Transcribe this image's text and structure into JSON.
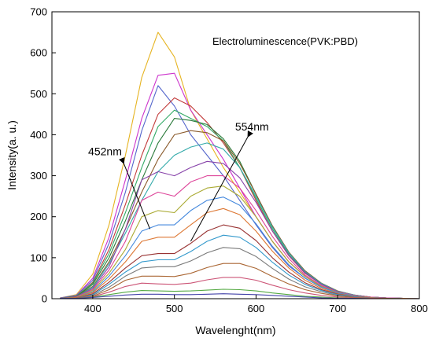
{
  "chart_data": {
    "type": "line",
    "title": "Electroluminescence(PVK:PBD)",
    "xlabel": "Wavelenght(nm)",
    "ylabel": "Intensity(a. u.)",
    "xlim": [
      350,
      800
    ],
    "ylim": [
      0,
      700
    ],
    "x_ticks": [
      400,
      500,
      600,
      700,
      800
    ],
    "y_ticks": [
      0,
      100,
      200,
      300,
      400,
      500,
      600,
      700
    ],
    "grid": false,
    "annotations": [
      {
        "text": "452nm",
        "x": 415,
        "y": 350,
        "arrow_from": [
          438,
          330
        ],
        "arrow_to": [
          470,
          170
        ]
      },
      {
        "text": "554nm",
        "x": 595,
        "y": 410,
        "arrow_from": [
          590,
          395
        ],
        "arrow_to": [
          520,
          140
        ]
      }
    ],
    "x": [
      360,
      380,
      400,
      420,
      440,
      460,
      480,
      500,
      520,
      540,
      560,
      580,
      600,
      620,
      640,
      660,
      680,
      700,
      720,
      740,
      760,
      780,
      800
    ],
    "series": [
      {
        "color": "#e6b422",
        "values": [
          2,
          10,
          60,
          180,
          350,
          540,
          650,
          590,
          460,
          390,
          320,
          260,
          200,
          140,
          90,
          55,
          30,
          15,
          8,
          4,
          2,
          1,
          0
        ]
      },
      {
        "color": "#cc33cc",
        "values": [
          2,
          8,
          50,
          150,
          290,
          440,
          545,
          550,
          460,
          400,
          340,
          270,
          200,
          140,
          90,
          55,
          30,
          15,
          8,
          4,
          2,
          1,
          0
        ]
      },
      {
        "color": "#5566cc",
        "values": [
          2,
          8,
          45,
          135,
          260,
          410,
          520,
          470,
          400,
          350,
          300,
          240,
          180,
          125,
          80,
          50,
          28,
          14,
          7,
          3,
          1,
          1,
          0
        ]
      },
      {
        "color": "#c23b3b",
        "values": [
          1,
          6,
          40,
          120,
          230,
          350,
          450,
          490,
          470,
          430,
          380,
          320,
          240,
          165,
          105,
          62,
          35,
          17,
          8,
          4,
          2,
          1,
          0
        ]
      },
      {
        "color": "#33aa66",
        "values": [
          1,
          6,
          38,
          110,
          210,
          320,
          420,
          460,
          440,
          420,
          385,
          320,
          245,
          170,
          108,
          64,
          36,
          18,
          9,
          4,
          2,
          1,
          0
        ]
      },
      {
        "color": "#2a7a3a",
        "values": [
          1,
          5,
          35,
          100,
          190,
          290,
          380,
          440,
          435,
          425,
          390,
          335,
          255,
          175,
          112,
          66,
          37,
          18,
          9,
          4,
          2,
          1,
          0
        ]
      },
      {
        "color": "#8a5a2a",
        "values": [
          1,
          5,
          30,
          90,
          170,
          260,
          340,
          400,
          410,
          405,
          385,
          330,
          255,
          178,
          114,
          68,
          38,
          19,
          9,
          4,
          2,
          1,
          0
        ]
      },
      {
        "color": "#33aaaa",
        "values": [
          1,
          4,
          28,
          85,
          160,
          240,
          310,
          350,
          370,
          380,
          365,
          320,
          250,
          175,
          112,
          66,
          37,
          18,
          9,
          4,
          2,
          1,
          0
        ]
      },
      {
        "color": "#8844aa",
        "values": [
          1,
          4,
          25,
          78,
          170,
          290,
          310,
          300,
          320,
          335,
          330,
          295,
          235,
          165,
          106,
          63,
          35,
          17,
          8,
          4,
          2,
          1,
          0
        ]
      },
      {
        "color": "#dd4499",
        "values": [
          1,
          4,
          22,
          70,
          140,
          240,
          260,
          250,
          285,
          300,
          300,
          270,
          215,
          152,
          98,
          58,
          32,
          16,
          8,
          4,
          2,
          1,
          0
        ]
      },
      {
        "color": "#aaaa33",
        "values": [
          1,
          3,
          20,
          62,
          120,
          200,
          215,
          210,
          250,
          270,
          275,
          250,
          200,
          140,
          90,
          54,
          30,
          15,
          7,
          3,
          1,
          1,
          0
        ]
      },
      {
        "color": "#4488dd",
        "values": [
          1,
          3,
          17,
          55,
          105,
          165,
          180,
          180,
          215,
          240,
          248,
          228,
          183,
          128,
          83,
          50,
          28,
          14,
          7,
          3,
          1,
          1,
          0
        ]
      },
      {
        "color": "#dd7733",
        "values": [
          1,
          3,
          15,
          48,
          90,
          140,
          150,
          150,
          180,
          210,
          220,
          205,
          165,
          116,
          75,
          45,
          25,
          12,
          6,
          3,
          1,
          1,
          0
        ]
      },
      {
        "color": "#993333",
        "values": [
          1,
          2,
          12,
          40,
          75,
          105,
          110,
          110,
          135,
          165,
          180,
          172,
          142,
          100,
          65,
          39,
          22,
          11,
          5,
          2,
          1,
          0,
          0
        ]
      },
      {
        "color": "#3399cc",
        "values": [
          1,
          2,
          10,
          35,
          65,
          90,
          95,
          95,
          115,
          140,
          155,
          150,
          125,
          89,
          58,
          35,
          20,
          10,
          5,
          2,
          1,
          0,
          0
        ]
      },
      {
        "color": "#7a7a7a",
        "values": [
          1,
          2,
          8,
          28,
          55,
          75,
          78,
          78,
          92,
          112,
          125,
          122,
          103,
          74,
          48,
          29,
          17,
          8,
          4,
          2,
          1,
          0,
          0
        ]
      },
      {
        "color": "#aa6633",
        "values": [
          1,
          2,
          6,
          22,
          45,
          55,
          55,
          54,
          62,
          76,
          86,
          86,
          74,
          54,
          36,
          22,
          13,
          7,
          3,
          1,
          1,
          0,
          0
        ]
      },
      {
        "color": "#cc5577",
        "values": [
          1,
          1,
          5,
          16,
          30,
          38,
          36,
          35,
          38,
          46,
          52,
          52,
          45,
          33,
          22,
          14,
          8,
          4,
          2,
          1,
          0,
          0,
          0
        ]
      },
      {
        "color": "#55aa44",
        "values": [
          1,
          1,
          4,
          10,
          16,
          20,
          19,
          18,
          19,
          21,
          23,
          22,
          19,
          14,
          10,
          6,
          4,
          2,
          1,
          0,
          0,
          0,
          0
        ]
      },
      {
        "color": "#4444aa",
        "values": [
          1,
          1,
          3,
          6,
          9,
          11,
          11,
          10,
          10,
          11,
          12,
          11,
          10,
          8,
          6,
          4,
          2,
          1,
          1,
          0,
          0,
          0,
          0
        ]
      }
    ]
  }
}
